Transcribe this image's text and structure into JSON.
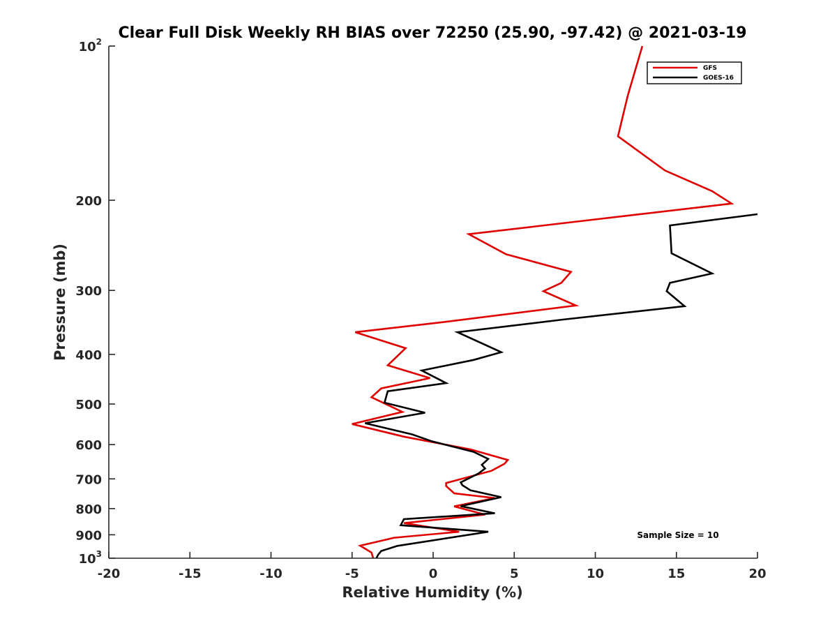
{
  "chart_data": {
    "type": "line",
    "title": "Clear Full Disk Weekly RH BIAS over 72250 (25.90, -97.42) @ 2021-03-19",
    "xlabel": "Relative Humidity (%)",
    "ylabel": "Pressure (mb)",
    "xlim": [
      -20,
      20
    ],
    "ylim": [
      100,
      1000
    ],
    "y_scale": "log",
    "y_reversed": true,
    "grid": false,
    "legend_position": "top-right",
    "x_ticks": [
      "-20",
      "-15",
      "-10",
      "-5",
      "0",
      "5",
      "10",
      "15",
      "20"
    ],
    "y_ticks": [
      {
        "value": 100,
        "base": "10",
        "sup": "2"
      },
      {
        "value": 200,
        "base": "200",
        "sup": ""
      },
      {
        "value": 300,
        "base": "300",
        "sup": ""
      },
      {
        "value": 400,
        "base": "400",
        "sup": ""
      },
      {
        "value": 500,
        "base": "500",
        "sup": ""
      },
      {
        "value": 600,
        "base": "600",
        "sup": ""
      },
      {
        "value": 700,
        "base": "700",
        "sup": ""
      },
      {
        "value": 800,
        "base": "800",
        "sup": ""
      },
      {
        "value": 900,
        "base": "900",
        "sup": ""
      },
      {
        "value": 1000,
        "base": "10",
        "sup": "3"
      }
    ],
    "annotation": "Sample Size = 10",
    "series": [
      {
        "name": "GFS",
        "color": "#e00000",
        "points": [
          [
            12.9,
            100
          ],
          [
            12.0,
            125
          ],
          [
            11.4,
            150
          ],
          [
            14.3,
            175
          ],
          [
            17.2,
            192
          ],
          [
            18.4,
            203
          ],
          [
            2.2,
            233
          ],
          [
            4.5,
            255
          ],
          [
            8.5,
            276
          ],
          [
            7.9,
            290
          ],
          [
            6.8,
            301
          ],
          [
            8.8,
            321
          ],
          [
            0.6,
            346
          ],
          [
            -4.8,
            362
          ],
          [
            -1.7,
            389
          ],
          [
            -2.8,
            420
          ],
          [
            -0.2,
            445
          ],
          [
            -3.2,
            466
          ],
          [
            -3.8,
            485
          ],
          [
            -1.9,
            518
          ],
          [
            -5.0,
            547
          ],
          [
            -1.8,
            579
          ],
          [
            2.3,
            613
          ],
          [
            4.6,
            643
          ],
          [
            4.4,
            654
          ],
          [
            3.6,
            675
          ],
          [
            0.8,
            713
          ],
          [
            0.8,
            723
          ],
          [
            1.3,
            747
          ],
          [
            3.8,
            763
          ],
          [
            1.3,
            792
          ],
          [
            3.2,
            822
          ],
          [
            -1.8,
            854
          ],
          [
            1.6,
            888
          ],
          [
            -2.4,
            912
          ],
          [
            -4.5,
            945
          ],
          [
            -3.8,
            975
          ],
          [
            -3.7,
            1000
          ]
        ]
      },
      {
        "name": "GOES-16",
        "color": "#000000",
        "points": [
          [
            20.0,
            213
          ],
          [
            14.6,
            224
          ],
          [
            14.7,
            254
          ],
          [
            17.2,
            278
          ],
          [
            14.6,
            290
          ],
          [
            14.4,
            301
          ],
          [
            15.5,
            322
          ],
          [
            8.0,
            342
          ],
          [
            1.5,
            362
          ],
          [
            4.2,
            396
          ],
          [
            2.5,
            410
          ],
          [
            -0.7,
            430
          ],
          [
            0.8,
            455
          ],
          [
            -2.8,
            472
          ],
          [
            -3.0,
            497
          ],
          [
            -0.5,
            520
          ],
          [
            -4.2,
            545
          ],
          [
            -1.3,
            573
          ],
          [
            -0.1,
            591
          ],
          [
            2.5,
            620
          ],
          [
            3.4,
            640
          ],
          [
            3.0,
            657
          ],
          [
            3.2,
            668
          ],
          [
            2.8,
            683
          ],
          [
            1.7,
            711
          ],
          [
            1.8,
            720
          ],
          [
            2.3,
            737
          ],
          [
            4.2,
            760
          ],
          [
            1.7,
            791
          ],
          [
            3.8,
            817
          ],
          [
            -1.8,
            839
          ],
          [
            -2.0,
            862
          ],
          [
            3.4,
            888
          ],
          [
            -2.2,
            946
          ],
          [
            -3.2,
            968
          ],
          [
            -3.4,
            985
          ],
          [
            -3.5,
            1000
          ]
        ]
      }
    ]
  }
}
